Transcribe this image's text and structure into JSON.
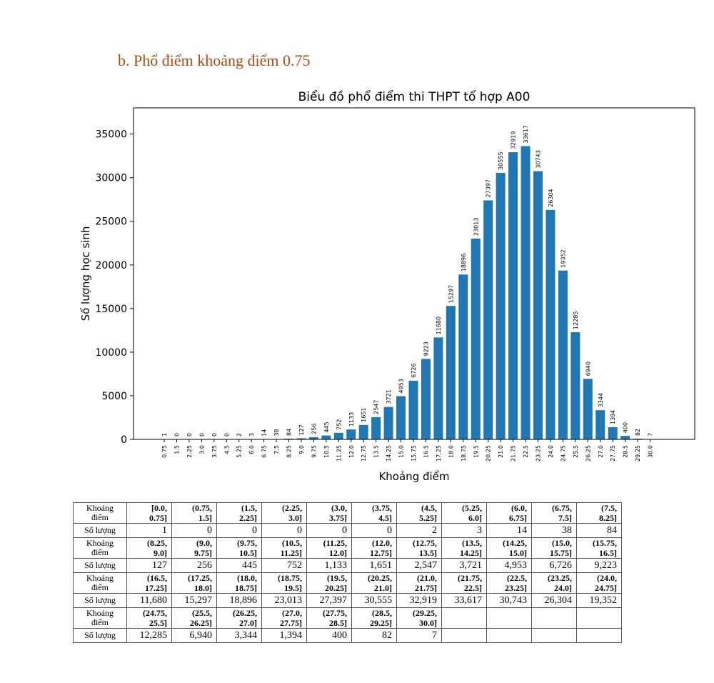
{
  "heading": "b.   Phổ điểm khoảng điểm 0.75",
  "chart_data": {
    "type": "bar",
    "title": "Biểu đồ phổ điểm thi THPT tổ hợp A00",
    "xlabel": "Khoảng điểm",
    "ylabel": "Số lượng học sinh",
    "ylim": [
      0,
      38000
    ],
    "yticks": [
      0,
      5000,
      10000,
      15000,
      20000,
      25000,
      30000,
      35000
    ],
    "ytick_labels": [
      "0",
      "5000",
      "10000",
      "15000",
      "20000",
      "25000",
      "30000",
      "35000"
    ],
    "categories": [
      "0.75",
      "1.5",
      "2.25",
      "3.0",
      "3.75",
      "4.5",
      "5.25",
      "6.0",
      "6.75",
      "7.5",
      "8.25",
      "9.0",
      "9.75",
      "10.5",
      "11.25",
      "12.0",
      "12.75",
      "13.5",
      "14.25",
      "15.0",
      "15.75",
      "16.5",
      "17.25",
      "18.0",
      "18.75",
      "19.5",
      "20.25",
      "21.0",
      "21.75",
      "22.5",
      "23.25",
      "24.0",
      "24.75",
      "25.5",
      "26.25",
      "27.0",
      "27.75",
      "28.5",
      "29.25",
      "30.0"
    ],
    "values": [
      1,
      0,
      0,
      0,
      0,
      0,
      2,
      3,
      14,
      38,
      84,
      127,
      256,
      445,
      752,
      1133,
      1651,
      2547,
      3721,
      4953,
      6726,
      9223,
      11680,
      15297,
      18896,
      23013,
      27397,
      30555,
      32919,
      33617,
      30743,
      26304,
      19352,
      12285,
      6940,
      3344,
      1394,
      400,
      82,
      7
    ],
    "color": "#1f77b4",
    "grid": false
  },
  "table": {
    "range_label": "Khoảng\nđiểm",
    "count_label": "Số lượng",
    "rows": [
      {
        "ranges": [
          [
            "[0.0,",
            "0.75]"
          ],
          [
            "(0.75,",
            "1.5]"
          ],
          [
            "(1.5,",
            "2.25]"
          ],
          [
            "(2.25,",
            "3.0]"
          ],
          [
            "(3.0,",
            "3.75]"
          ],
          [
            "(3.75,",
            "4.5]"
          ],
          [
            "(4.5,",
            "5.25]"
          ],
          [
            "(5.25,",
            "6.0]"
          ],
          [
            "(6.0,",
            "6.75]"
          ],
          [
            "(6.75,",
            "7.5]"
          ],
          [
            "(7.5,",
            "8.25]"
          ]
        ],
        "counts": [
          "1",
          "0",
          "0",
          "0",
          "0",
          "0",
          "2",
          "3",
          "14",
          "38",
          "84"
        ]
      },
      {
        "ranges": [
          [
            "(8.25,",
            "9.0]"
          ],
          [
            "(9.0,",
            "9.75]"
          ],
          [
            "(9.75,",
            "10.5]"
          ],
          [
            "(10.5,",
            "11.25]"
          ],
          [
            "(11.25,",
            "12.0]"
          ],
          [
            "(12.0,",
            "12.75]"
          ],
          [
            "(12.75,",
            "13.5]"
          ],
          [
            "(13.5,",
            "14.25]"
          ],
          [
            "(14.25,",
            "15.0]"
          ],
          [
            "(15.0,",
            "15.75]"
          ],
          [
            "(15.75,",
            "16.5]"
          ]
        ],
        "counts": [
          "127",
          "256",
          "445",
          "752",
          "1,133",
          "1,651",
          "2,547",
          "3,721",
          "4,953",
          "6,726",
          "9,223"
        ]
      },
      {
        "ranges": [
          [
            "(16.5,",
            "17.25]"
          ],
          [
            "(17.25,",
            "18.0]"
          ],
          [
            "(18.0,",
            "18.75]"
          ],
          [
            "(18.75,",
            "19.5]"
          ],
          [
            "(19.5,",
            "20.25]"
          ],
          [
            "(20.25,",
            "21.0]"
          ],
          [
            "(21.0,",
            "21.75]"
          ],
          [
            "(21.75,",
            "22.5]"
          ],
          [
            "(22.5,",
            "23.25]"
          ],
          [
            "(23.25,",
            "24.0]"
          ],
          [
            "(24.0,",
            "24.75]"
          ]
        ],
        "counts": [
          "11,680",
          "15,297",
          "18,896",
          "23,013",
          "27,397",
          "30,555",
          "32,919",
          "33,617",
          "30,743",
          "26,304",
          "19,352"
        ]
      },
      {
        "ranges": [
          [
            "(24.75,",
            "25.5]"
          ],
          [
            "(25.5,",
            "26.25]"
          ],
          [
            "(26.25,",
            "27.0]"
          ],
          [
            "(27.0,",
            "27.75]"
          ],
          [
            "(27.75,",
            "28.5]"
          ],
          [
            "(28.5,",
            "29.25]"
          ],
          [
            "(29.25,",
            "30.0]"
          ],
          [
            "",
            ""
          ],
          [
            "",
            ""
          ],
          [
            "",
            ""
          ],
          [
            "",
            ""
          ]
        ],
        "counts": [
          "12,285",
          "6,940",
          "3,344",
          "1,394",
          "400",
          "82",
          "7",
          "",
          "",
          "",
          ""
        ]
      }
    ]
  }
}
